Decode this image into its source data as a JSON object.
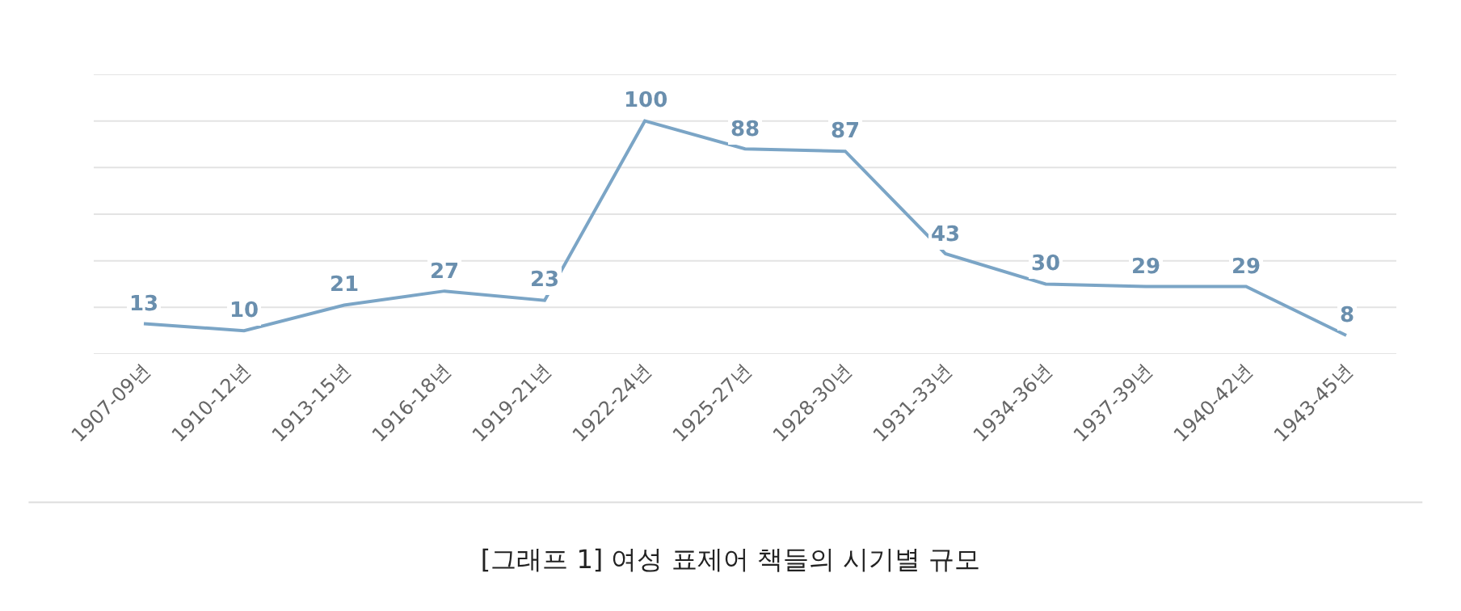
{
  "chart_data": {
    "type": "line",
    "title": "[그래프 1] 여성 표제어 책들의 시기별 규모",
    "categories": [
      "1907-09년",
      "1910-12년",
      "1913-15년",
      "1916-18년",
      "1919-21년",
      "1922-24년",
      "1925-27년",
      "1928-30년",
      "1931-33년",
      "1934-36년",
      "1937-39년",
      "1940-42년",
      "1943-45년"
    ],
    "series": [
      {
        "color": "#7ba5c6",
        "values": [
          13,
          10,
          21,
          27,
          23,
          100,
          88,
          87,
          43,
          30,
          29,
          29,
          8
        ]
      }
    ],
    "tick_labels": "x",
    "grid": "y",
    "data_labels": true,
    "line_style": "solid",
    "marker": "none",
    "ylim": [
      0,
      120
    ],
    "yticks": [
      {
        "value": 0,
        "label": null
      },
      {
        "value": 20,
        "label": null
      },
      {
        "value": 40,
        "label": null
      },
      {
        "value": 60,
        "label": null
      },
      {
        "value": 80,
        "label": null
      },
      {
        "value": 100,
        "label": null
      },
      {
        "value": 120,
        "label": null
      }
    ]
  }
}
